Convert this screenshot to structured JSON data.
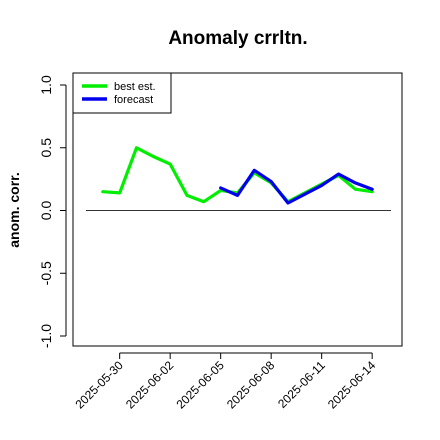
{
  "chart_data": {
    "type": "line",
    "title": "Anomaly crrltn.",
    "xlabel": "",
    "ylabel": "anom. corr.",
    "ylim": [
      -1.0,
      1.0
    ],
    "yticks": [
      "-1.0",
      "-0.5",
      "0.0",
      "0.5",
      "1.0"
    ],
    "xlim": [
      "2025-05-28",
      "2025-06-15"
    ],
    "xticks": [
      {
        "label": "2025-05-30",
        "x": "2025-05-30",
        "color": "#000000"
      },
      {
        "label": "2025-06-02",
        "x": "2025-06-02",
        "color": "#000000"
      },
      {
        "label": "2025-06-05",
        "x": "2025-06-05",
        "color": "#228B22"
      },
      {
        "label": "2025-06-08",
        "x": "2025-06-08",
        "color": "#000000"
      },
      {
        "label": "2025-06-11",
        "x": "2025-06-11",
        "color": "#000000"
      },
      {
        "label": "2025-06-14",
        "x": "2025-06-14",
        "color": "#000000"
      }
    ],
    "reference_line": 0.0,
    "grid": false,
    "legend_position": "top-left",
    "x": [
      "2025-05-29",
      "2025-05-30",
      "2025-05-31",
      "2025-06-01",
      "2025-06-02",
      "2025-06-03",
      "2025-06-04",
      "2025-06-05",
      "2025-06-06",
      "2025-06-07",
      "2025-06-08",
      "2025-06-09",
      "2025-06-10",
      "2025-06-11",
      "2025-06-12",
      "2025-06-13",
      "2025-06-14"
    ],
    "series": [
      {
        "name": "best est.",
        "color": "#00ee00",
        "values": [
          0.15,
          0.14,
          0.5,
          0.43,
          0.37,
          0.12,
          0.07,
          0.16,
          0.14,
          0.3,
          0.22,
          0.07,
          0.14,
          0.21,
          0.28,
          0.17,
          0.15
        ]
      },
      {
        "name": "forecast",
        "color": "#0000ee",
        "values": [
          null,
          null,
          null,
          null,
          null,
          null,
          null,
          0.18,
          0.12,
          0.32,
          0.23,
          0.06,
          0.13,
          0.2,
          0.29,
          0.22,
          0.17
        ]
      }
    ]
  }
}
